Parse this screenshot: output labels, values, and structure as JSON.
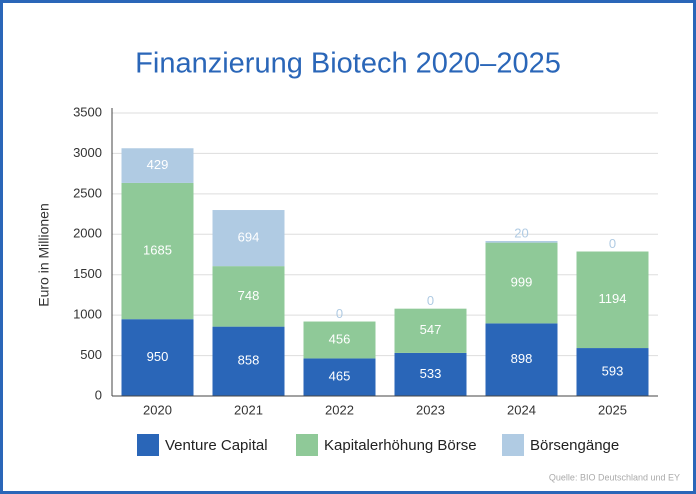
{
  "chart_data": {
    "type": "stacked_bar",
    "title": "Finanzierung Biotech 2020–2025",
    "y_label": "Euro in Millionen",
    "source": "Quelle: BIO Deutschland und EY",
    "categories": [
      "2020",
      "2021",
      "2022",
      "2023",
      "2024",
      "2025"
    ],
    "series": [
      {
        "name": "Venture Capital",
        "color": "#2a66b8",
        "values": [
          950,
          858,
          465,
          533,
          898,
          593
        ]
      },
      {
        "name": "Kapitalerhöhung Börse",
        "color": "#8fc998",
        "values": [
          1685,
          748,
          456,
          547,
          999,
          1194
        ]
      },
      {
        "name": "Börsengänge",
        "color": "#b0cbe3",
        "values": [
          429,
          694,
          0,
          0,
          20,
          0
        ]
      }
    ],
    "ylim": [
      0,
      3500
    ],
    "yticks": [
      0,
      500,
      1000,
      1500,
      2000,
      2500,
      3000,
      3500
    ],
    "grid": true
  }
}
